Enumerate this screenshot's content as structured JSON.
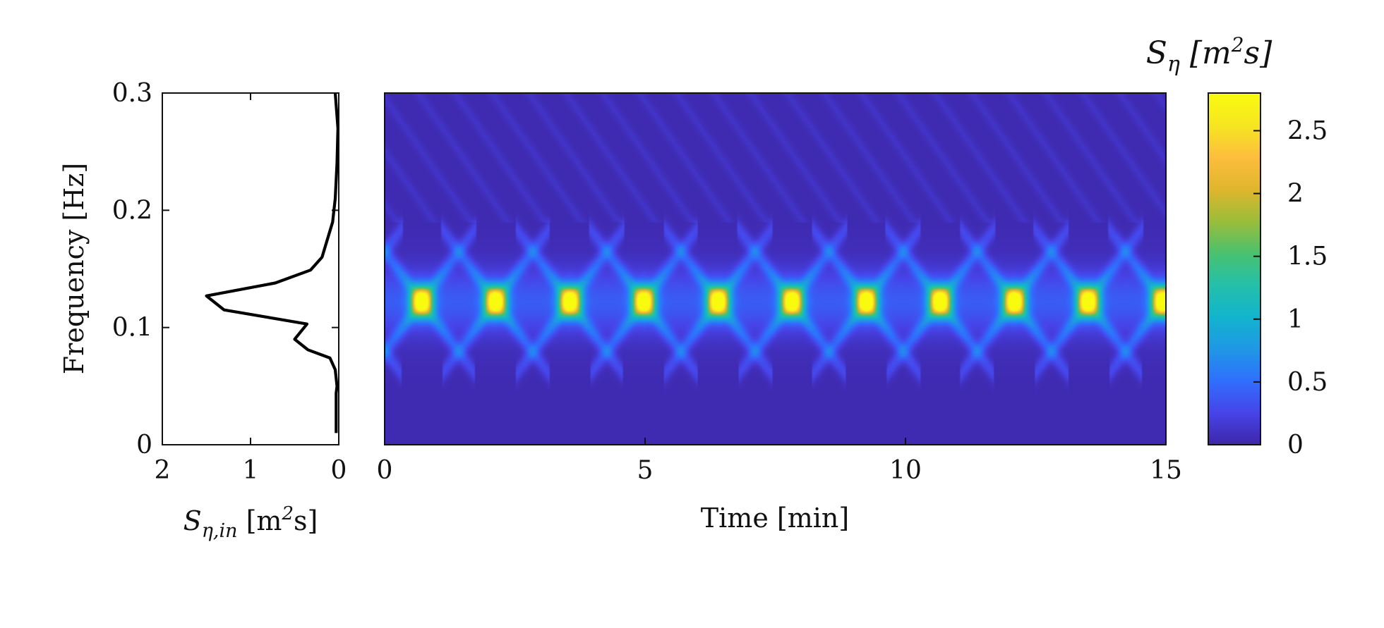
{
  "chart_data": [
    {
      "type": "line",
      "panel": "input-spectrum",
      "xlabel": {
        "main": "S",
        "sub": "η,in",
        "unit_open": " [m",
        "unit_sup": "2",
        "unit_close": "s]"
      },
      "ylabel": "Frequency [Hz]",
      "xlim": [
        2,
        0
      ],
      "x_reversed": true,
      "ylim": [
        0,
        0.3
      ],
      "xticks": [
        2,
        1,
        0
      ],
      "yticks": [
        0,
        0.1,
        0.2,
        0.3
      ],
      "series": [
        {
          "x": [
            0.03,
            0.03,
            0.02,
            0.04,
            0.1,
            0.35,
            0.5,
            0.36,
            1.3,
            1.5,
            0.72,
            0.32,
            0.19,
            0.13,
            0.07,
            0.04,
            0.02,
            0.01,
            0.04
          ],
          "y": [
            0.01,
            0.044,
            0.05,
            0.064,
            0.074,
            0.081,
            0.09,
            0.103,
            0.115,
            0.127,
            0.138,
            0.149,
            0.16,
            0.175,
            0.19,
            0.21,
            0.24,
            0.27,
            0.3
          ]
        }
      ],
      "grid": false
    },
    {
      "type": "heatmap",
      "panel": "spectrogram",
      "xlabel": "Time [min]",
      "xlim": [
        0,
        15
      ],
      "ylim": [
        0,
        0.3
      ],
      "xticks": [
        0,
        5,
        10,
        15
      ],
      "colorbar": {
        "title": {
          "main": "S",
          "sub": "η",
          "unit_open": " [m",
          "unit_sup": "2",
          "unit_close": "s]"
        },
        "range": [
          0,
          2.8
        ],
        "ticks": [
          0,
          0.5,
          1,
          1.5,
          2,
          2.5
        ],
        "colormap": "parula"
      },
      "peak_value": 2.75,
      "peak_frequency_hz": 0.122,
      "peak_times_min": [
        0.7,
        2.12,
        3.55,
        4.97,
        6.4,
        7.82,
        9.25,
        10.67,
        12.1,
        13.52,
        14.95
      ],
      "branch_frequency_range_hz": [
        0.06,
        0.185
      ],
      "grid": false
    }
  ],
  "colors": {
    "colormap_stops": [
      "#3e26a8",
      "#4744e9",
      "#2f6ffe",
      "#1f98e4",
      "#12b4cd",
      "#24c0a9",
      "#4ac16e",
      "#9bbd39",
      "#e0b52d",
      "#fdbe3d",
      "#f6e620",
      "#f9fb0e"
    ],
    "line": "#000000"
  }
}
